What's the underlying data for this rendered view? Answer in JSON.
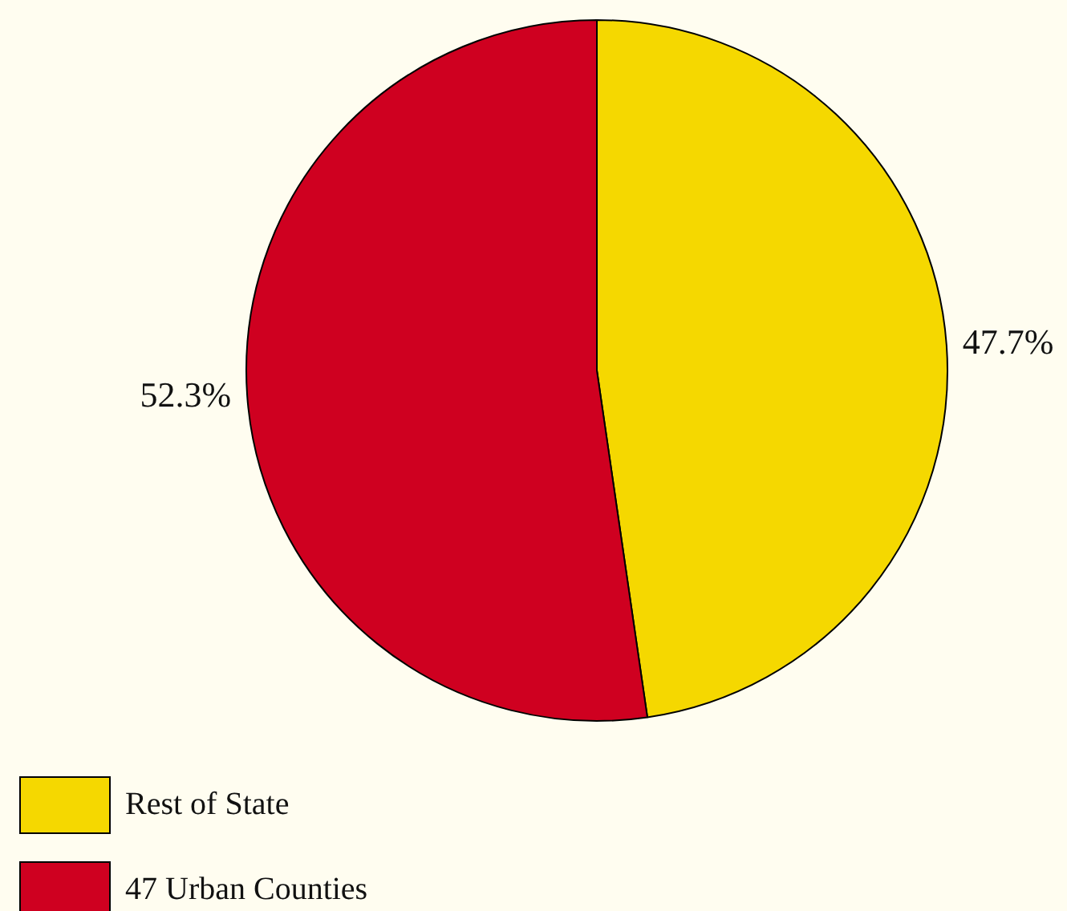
{
  "chart_data": {
    "type": "pie",
    "categories": [
      "Rest of State",
      "47 Urban Counties"
    ],
    "values": [
      47.7,
      52.3
    ],
    "colors": [
      "#f5d800",
      "#cf0020"
    ],
    "value_labels": [
      "47.7%",
      "52.3%"
    ],
    "legend": "bottom left"
  }
}
